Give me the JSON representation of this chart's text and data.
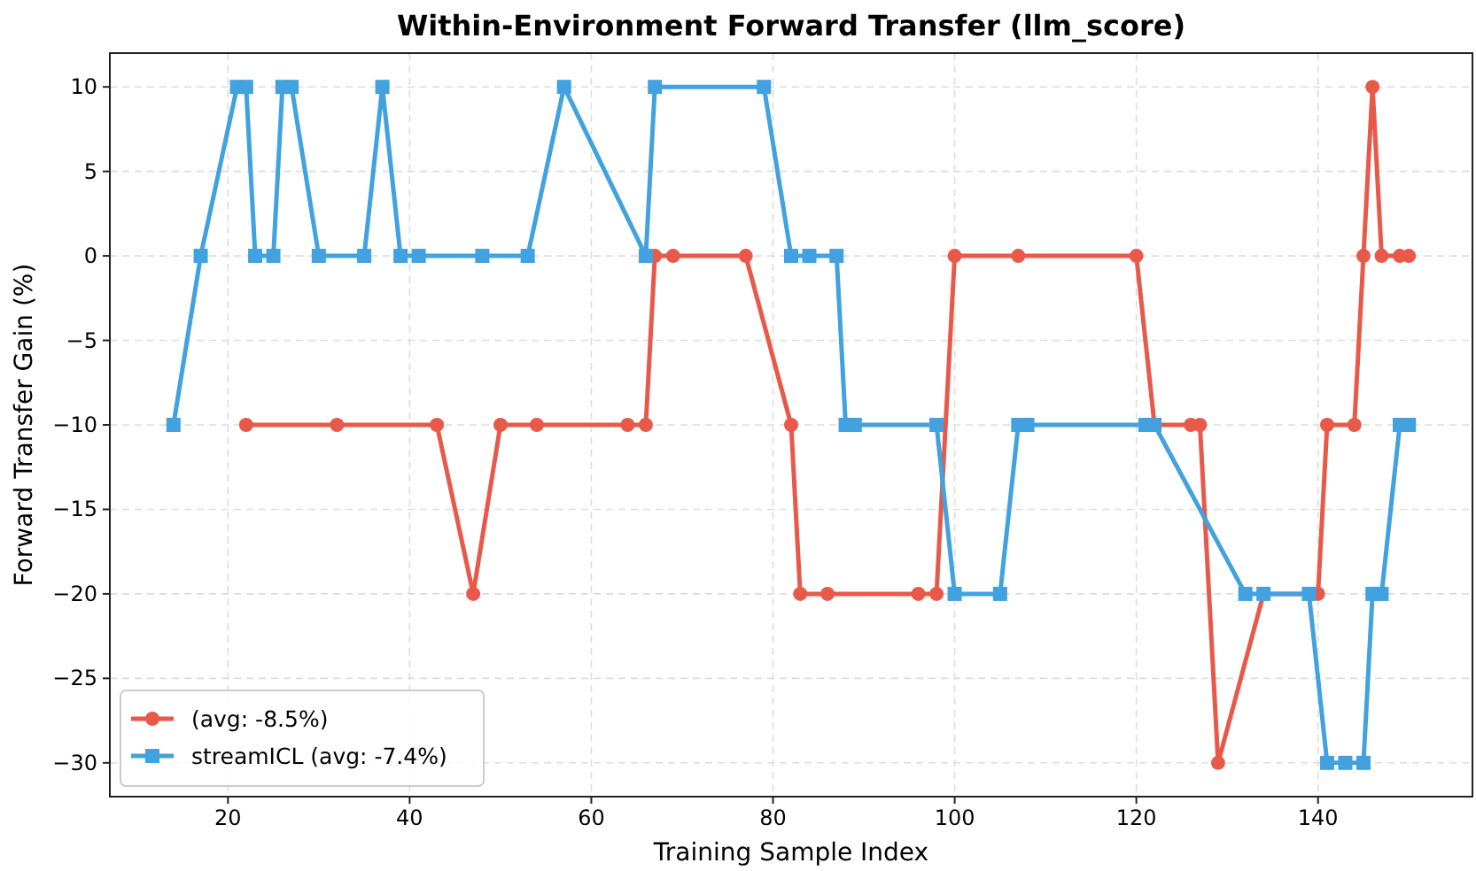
{
  "chart_data": {
    "type": "line",
    "title": "Within-Environment Forward Transfer (llm_score)",
    "xlabel": "Training Sample Index",
    "ylabel": "Forward Transfer Gain (%)",
    "xlim": [
      7,
      157
    ],
    "ylim": [
      -32,
      12
    ],
    "xticks": [
      20,
      40,
      60,
      80,
      100,
      120,
      140
    ],
    "yticks": [
      -30,
      -25,
      -20,
      -15,
      -10,
      -5,
      0,
      5,
      10
    ],
    "grid": true,
    "legend": "bottom left",
    "line_style": "solid",
    "series": [
      {
        "name": "(avg: -8.5%)",
        "color": "#e8594a",
        "marker": "circle",
        "x": [
          22,
          32,
          43,
          47,
          50,
          54,
          64,
          66,
          67,
          69,
          77,
          82,
          83,
          86,
          96,
          98,
          100,
          107,
          120,
          122,
          126,
          127,
          129,
          134,
          140,
          141,
          144,
          145,
          146,
          147,
          149,
          150
        ],
        "values": [
          -10,
          -10,
          -10,
          -20,
          -10,
          -10,
          -10,
          -10,
          0,
          0,
          0,
          -10,
          -20,
          -20,
          -20,
          -20,
          0,
          0,
          0,
          -10,
          -10,
          -10,
          -30,
          -20,
          -20,
          -10,
          -10,
          0,
          10,
          0,
          0,
          0
        ]
      },
      {
        "name": "streamICL (avg: -7.4%)",
        "color": "#42a1df",
        "marker": "square",
        "x": [
          14,
          17,
          21,
          22,
          23,
          25,
          26,
          27,
          30,
          35,
          37,
          39,
          41,
          48,
          53,
          57,
          66,
          67,
          79,
          82,
          84,
          87,
          88,
          89,
          98,
          100,
          105,
          107,
          108,
          121,
          122,
          132,
          134,
          139,
          141,
          143,
          145,
          146,
          147,
          149,
          150
        ],
        "values": [
          -10,
          0,
          10,
          10,
          0,
          0,
          10,
          10,
          0,
          0,
          10,
          0,
          0,
          0,
          0,
          10,
          0,
          10,
          10,
          0,
          0,
          0,
          -10,
          -10,
          -10,
          -20,
          -20,
          -10,
          -10,
          -10,
          -10,
          -20,
          -20,
          -20,
          -30,
          -30,
          -30,
          -20,
          -20,
          -10,
          -10
        ]
      }
    ]
  }
}
